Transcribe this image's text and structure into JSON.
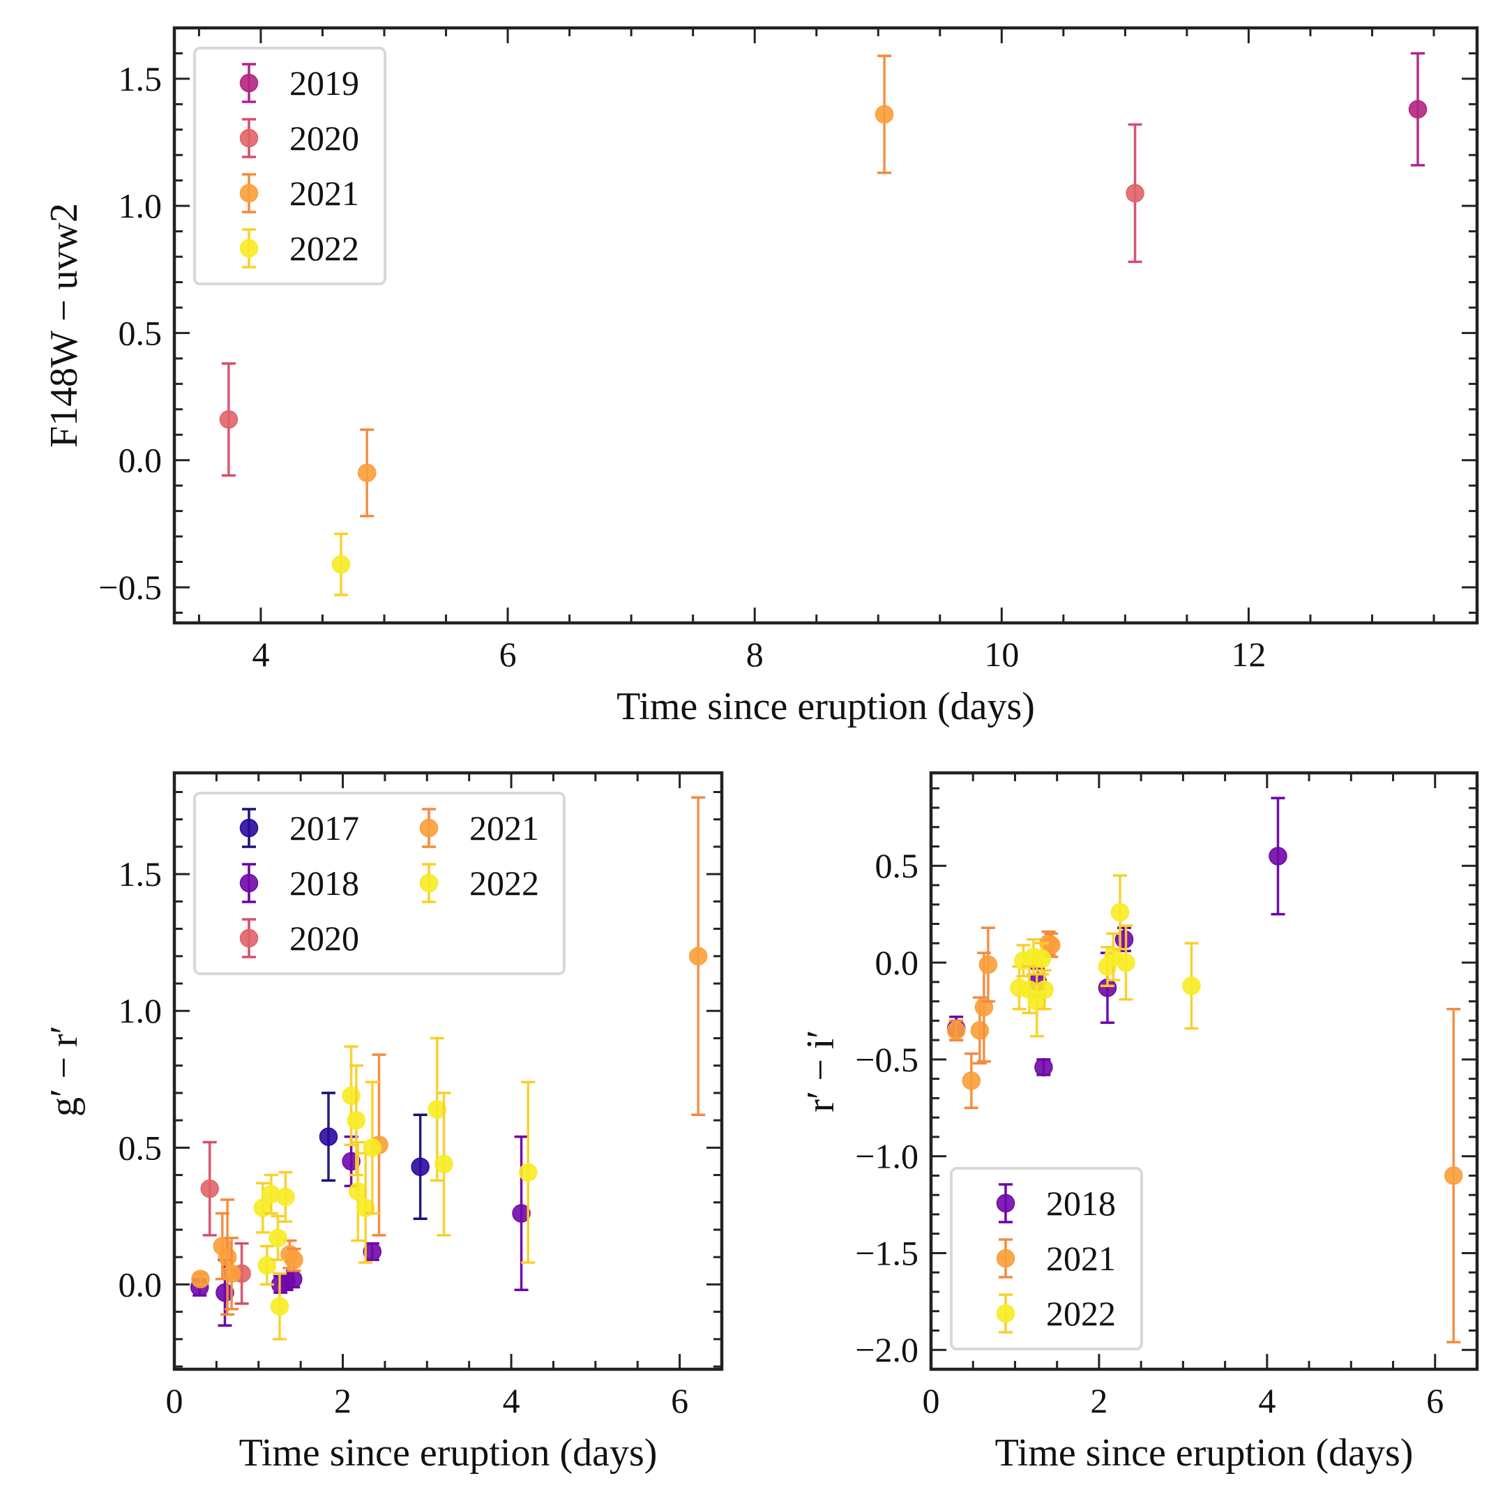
{
  "colors": {
    "2017": "#2a0a9e",
    "2018": "#7009a8",
    "2019": "#b5257f",
    "2020": "#e06467",
    "2021": "#fb9f3a",
    "2022": "#f7ec24",
    "err2017": "#14117a",
    "err2018": "#6a00a8",
    "err2019": "#b0238a",
    "err2020": "#d44e6a",
    "err2021": "#f38a3d",
    "err2022": "#f9cf28"
  },
  "chart_data": [
    {
      "id": "top",
      "type": "scatter",
      "xlabel": "Time since eruption (days)",
      "ylabel": "F148W − uvw2",
      "xlim": [
        3.3,
        13.85
      ],
      "ylim": [
        -0.64,
        1.7
      ],
      "xticks": [
        4,
        6,
        8,
        10,
        12
      ],
      "xtick_labels": [
        "4",
        "6",
        "8",
        "10",
        "12"
      ],
      "xminor": 0.5,
      "yticks": [
        -0.5,
        0.0,
        0.5,
        1.0,
        1.5
      ],
      "ytick_labels": [
        "−0.5",
        "0.0",
        "0.5",
        "1.0",
        "1.5"
      ],
      "yminor": 0.1,
      "legend": {
        "position": "top-left",
        "columns": 1
      },
      "series": [
        {
          "name": "2019",
          "points": [
            {
              "x": 13.37,
              "y": 1.38,
              "err": 0.22
            }
          ]
        },
        {
          "name": "2020",
          "points": [
            {
              "x": 3.74,
              "y": 0.16,
              "err": 0.22
            },
            {
              "x": 11.08,
              "y": 1.05,
              "err": 0.27
            }
          ]
        },
        {
          "name": "2021",
          "points": [
            {
              "x": 4.86,
              "y": -0.05,
              "err": 0.17
            },
            {
              "x": 9.05,
              "y": 1.36,
              "err": 0.23
            }
          ]
        },
        {
          "name": "2022",
          "points": [
            {
              "x": 4.65,
              "y": -0.41,
              "err": 0.12
            }
          ]
        }
      ]
    },
    {
      "id": "bottom-left",
      "type": "scatter",
      "xlabel": "Time since eruption (days)",
      "ylabel": "g′ − r′",
      "xlim": [
        0,
        6.5
      ],
      "ylim": [
        -0.31,
        1.87
      ],
      "xticks": [
        0,
        2,
        4,
        6
      ],
      "xtick_labels": [
        "0",
        "2",
        "4",
        "6"
      ],
      "xminor": 0.5,
      "yticks": [
        0.0,
        0.5,
        1.0,
        1.5
      ],
      "ytick_labels": [
        "0.0",
        "0.5",
        "1.0",
        "1.5"
      ],
      "yminor": 0.1,
      "legend": {
        "position": "top-left",
        "columns": 2
      },
      "series": [
        {
          "name": "2017",
          "points": [
            {
              "x": 1.83,
              "y": 0.54,
              "err": 0.16
            },
            {
              "x": 2.92,
              "y": 0.43,
              "err": 0.19
            }
          ]
        },
        {
          "name": "2018",
          "points": [
            {
              "x": 0.3,
              "y": -0.01,
              "err": 0.03
            },
            {
              "x": 0.6,
              "y": -0.03,
              "err": 0.12
            },
            {
              "x": 1.26,
              "y": 0.0,
              "err": 0.03
            },
            {
              "x": 1.33,
              "y": 0.01,
              "err": 0.03
            },
            {
              "x": 1.41,
              "y": 0.02,
              "err": 0.03
            },
            {
              "x": 2.1,
              "y": 0.45,
              "err": 0.09
            },
            {
              "x": 2.35,
              "y": 0.12,
              "err": 0.03
            },
            {
              "x": 4.12,
              "y": 0.26,
              "err": 0.28
            }
          ]
        },
        {
          "name": "2020",
          "points": [
            {
              "x": 0.42,
              "y": 0.35,
              "err": 0.17
            },
            {
              "x": 0.8,
              "y": 0.04,
              "err": 0.11
            }
          ]
        },
        {
          "name": "2021",
          "points": [
            {
              "x": 0.31,
              "y": 0.02,
              "err": 0.02
            },
            {
              "x": 0.57,
              "y": 0.14,
              "err": 0.12
            },
            {
              "x": 0.63,
              "y": 0.1,
              "err": 0.21
            },
            {
              "x": 0.68,
              "y": 0.04,
              "err": 0.13
            },
            {
              "x": 1.37,
              "y": 0.11,
              "err": 0.05
            },
            {
              "x": 1.42,
              "y": 0.09,
              "err": 0.04
            },
            {
              "x": 2.43,
              "y": 0.51,
              "err": 0.33
            },
            {
              "x": 6.22,
              "y": 1.2,
              "err": 0.58
            }
          ]
        },
        {
          "name": "2022",
          "points": [
            {
              "x": 1.05,
              "y": 0.28,
              "err": 0.09
            },
            {
              "x": 1.1,
              "y": 0.07,
              "err": 0.07
            },
            {
              "x": 1.15,
              "y": 0.33,
              "err": 0.07
            },
            {
              "x": 1.23,
              "y": 0.17,
              "err": 0.08
            },
            {
              "x": 1.25,
              "y": -0.08,
              "err": 0.12
            },
            {
              "x": 1.32,
              "y": 0.32,
              "err": 0.09
            },
            {
              "x": 2.1,
              "y": 0.69,
              "err": 0.18
            },
            {
              "x": 2.16,
              "y": 0.6,
              "err": 0.2
            },
            {
              "x": 2.18,
              "y": 0.34,
              "err": 0.18
            },
            {
              "x": 2.27,
              "y": 0.28,
              "err": 0.2
            },
            {
              "x": 2.35,
              "y": 0.5,
              "err": 0.24
            },
            {
              "x": 3.12,
              "y": 0.64,
              "err": 0.26
            },
            {
              "x": 3.2,
              "y": 0.44,
              "err": 0.26
            },
            {
              "x": 4.2,
              "y": 0.41,
              "err": 0.33
            }
          ]
        }
      ]
    },
    {
      "id": "bottom-right",
      "type": "scatter",
      "xlabel": "Time since eruption (days)",
      "ylabel": "r′ − i′",
      "xlim": [
        0,
        6.5
      ],
      "ylim": [
        -2.1,
        0.98
      ],
      "xticks": [
        0,
        2,
        4,
        6
      ],
      "xtick_labels": [
        "0",
        "2",
        "4",
        "6"
      ],
      "xminor": 0.5,
      "yticks": [
        -2.0,
        -1.5,
        -1.0,
        -0.5,
        0.0,
        0.5
      ],
      "ytick_labels": [
        "−2.0",
        "−1.5",
        "−1.0",
        "−0.5",
        "0.0",
        "0.5"
      ],
      "yminor": 0.1,
      "legend": {
        "position": "bottom-left",
        "columns": 1
      },
      "series": [
        {
          "name": "2018",
          "points": [
            {
              "x": 0.3,
              "y": -0.34,
              "err": 0.06
            },
            {
              "x": 1.27,
              "y": -0.1,
              "err": 0.07
            },
            {
              "x": 1.34,
              "y": -0.54,
              "err": 0.04
            },
            {
              "x": 2.1,
              "y": -0.13,
              "err": 0.18
            },
            {
              "x": 2.3,
              "y": 0.12,
              "err": 0.06
            },
            {
              "x": 4.13,
              "y": 0.55,
              "err": 0.3
            }
          ]
        },
        {
          "name": "2021",
          "points": [
            {
              "x": 0.3,
              "y": -0.35,
              "err": 0.05
            },
            {
              "x": 0.48,
              "y": -0.61,
              "err": 0.14
            },
            {
              "x": 0.58,
              "y": -0.35,
              "err": 0.17
            },
            {
              "x": 0.63,
              "y": -0.23,
              "err": 0.28
            },
            {
              "x": 0.68,
              "y": -0.01,
              "err": 0.19
            },
            {
              "x": 1.4,
              "y": 0.1,
              "err": 0.06
            },
            {
              "x": 1.43,
              "y": 0.09,
              "err": 0.06
            },
            {
              "x": 6.22,
              "y": -1.1,
              "err": 0.86
            }
          ]
        },
        {
          "name": "2022",
          "points": [
            {
              "x": 1.05,
              "y": -0.13,
              "err": 0.11
            },
            {
              "x": 1.1,
              "y": 0.01,
              "err": 0.08
            },
            {
              "x": 1.17,
              "y": -0.14,
              "err": 0.12
            },
            {
              "x": 1.22,
              "y": 0.03,
              "err": 0.09
            },
            {
              "x": 1.26,
              "y": -0.2,
              "err": 0.18
            },
            {
              "x": 1.32,
              "y": 0.02,
              "err": 0.08
            },
            {
              "x": 1.35,
              "y": -0.14,
              "err": 0.1
            },
            {
              "x": 2.1,
              "y": -0.02,
              "err": 0.1
            },
            {
              "x": 2.17,
              "y": 0.03,
              "err": 0.12
            },
            {
              "x": 2.25,
              "y": 0.26,
              "err": 0.19
            },
            {
              "x": 2.32,
              "y": 0.0,
              "err": 0.19
            },
            {
              "x": 3.1,
              "y": -0.12,
              "err": 0.22
            }
          ]
        }
      ]
    }
  ]
}
